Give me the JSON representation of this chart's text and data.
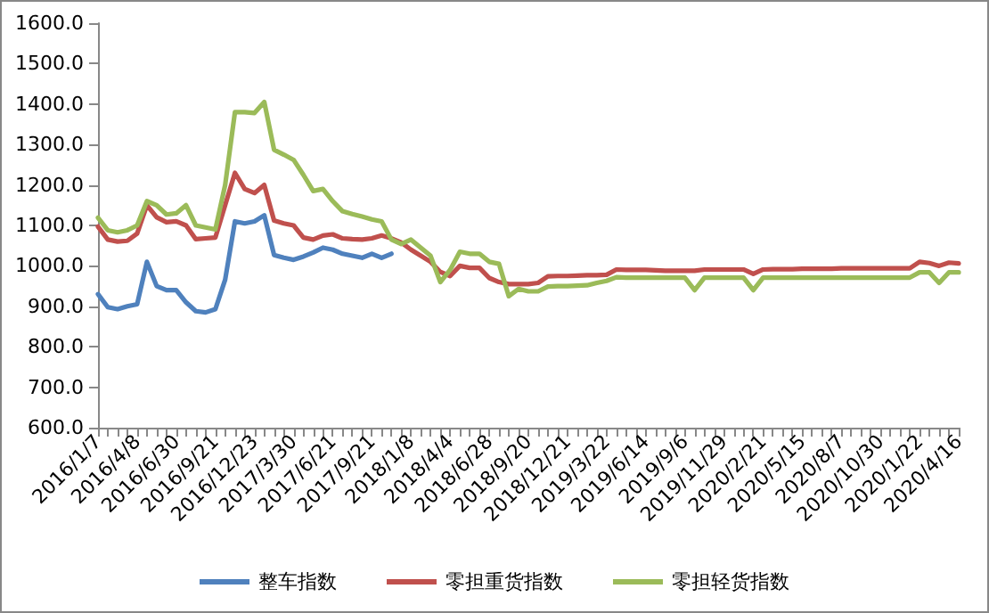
{
  "chart_data": {
    "type": "line",
    "categories": [
      "2016/1/7",
      null,
      null,
      null,
      "2016/4/8",
      null,
      null,
      null,
      "2016/6/30",
      null,
      null,
      null,
      "2016/9/21",
      null,
      null,
      null,
      "2016/12/23",
      null,
      null,
      null,
      "2017/3/30",
      null,
      null,
      null,
      "2017/6/21",
      null,
      null,
      null,
      "2017/9/21",
      null,
      null,
      null,
      "2018/1/8",
      null,
      null,
      null,
      "2018/4/4",
      null,
      null,
      null,
      "2018/6/28",
      null,
      null,
      null,
      "2018/9/20",
      null,
      null,
      null,
      "2018/12/21",
      null,
      null,
      null,
      "2019/3/22",
      null,
      null,
      null,
      "2019/6/14",
      null,
      null,
      null,
      "2019/9/6",
      null,
      null,
      null,
      "2019/11/29",
      null,
      null,
      null,
      "2020/2/21",
      null,
      null,
      null,
      "2020/5/15",
      null,
      null,
      null,
      "2020/8/7",
      null,
      null,
      null,
      "2020/10/30",
      null,
      null,
      null,
      "2020/1/22",
      null,
      null,
      null,
      "2020/4/16"
    ],
    "series": [
      {
        "name": "整车指数",
        "color": "#4f81bd",
        "values": [
          930,
          898,
          893,
          900,
          905,
          1010,
          950,
          940,
          940,
          910,
          888,
          885,
          893,
          966,
          1110,
          1105,
          1110,
          1125,
          1027,
          1020,
          1015,
          1023,
          1033,
          1045,
          1040,
          1030,
          1025,
          1020,
          1030,
          1020,
          1030,
          null,
          null,
          null,
          null,
          null,
          null,
          null,
          null,
          null,
          null,
          null,
          null,
          null,
          null,
          null,
          null,
          null,
          null,
          null,
          null,
          null,
          null,
          null,
          null,
          null,
          null,
          null,
          null,
          null,
          null,
          null,
          null,
          null,
          null,
          null,
          null,
          null,
          null,
          null,
          null,
          null,
          null,
          null,
          null,
          null,
          null,
          null,
          null,
          null,
          null,
          null,
          null,
          null,
          null,
          null,
          null,
          null,
          null
        ]
      },
      {
        "name": "零担重货指数",
        "color": "#c0504d",
        "values": [
          1097,
          1065,
          1060,
          1062,
          1080,
          1150,
          1120,
          1108,
          1110,
          1100,
          1066,
          1068,
          1070,
          1150,
          1230,
          1190,
          1180,
          1200,
          1112,
          1105,
          1100,
          1070,
          1065,
          1075,
          1078,
          1068,
          1066,
          1065,
          1068,
          1075,
          1068,
          1058,
          1040,
          1025,
          1010,
          985,
          975,
          1000,
          995,
          995,
          970,
          960,
          955,
          955,
          955,
          958,
          974,
          975,
          975,
          976,
          977,
          977,
          978,
          991,
          990,
          990,
          990,
          989,
          988,
          988,
          988,
          988,
          991,
          991,
          991,
          991,
          991,
          980,
          991,
          992,
          992,
          992,
          993,
          993,
          993,
          993,
          994,
          994,
          994,
          994,
          994,
          994,
          994,
          994,
          1010,
          1007,
          1000,
          1008,
          1006
        ]
      },
      {
        "name": "零担轻货指数",
        "color": "#9bbb59",
        "values": [
          1119,
          1088,
          1083,
          1088,
          1100,
          1160,
          1150,
          1127,
          1130,
          1150,
          1100,
          1095,
          1090,
          1200,
          1380,
          1380,
          1378,
          1405,
          1287,
          1275,
          1262,
          1225,
          1185,
          1190,
          1160,
          1135,
          1128,
          1122,
          1115,
          1110,
          1065,
          1054,
          1065,
          1045,
          1025,
          960,
          990,
          1035,
          1030,
          1030,
          1010,
          1005,
          925,
          943,
          937,
          937,
          949,
          950,
          950,
          951,
          952,
          958,
          963,
          972,
          971,
          971,
          971,
          971,
          971,
          971,
          971,
          940,
          971,
          971,
          971,
          971,
          971,
          940,
          971,
          971,
          971,
          971,
          971,
          971,
          971,
          971,
          971,
          971,
          971,
          971,
          971,
          971,
          971,
          971,
          984,
          984,
          958,
          984,
          984
        ]
      }
    ],
    "ylim": [
      600,
      1600
    ],
    "yticks": [
      {
        "value": 600,
        "label": "600.0"
      },
      {
        "value": 700,
        "label": "700.0"
      },
      {
        "value": 800,
        "label": "800.0"
      },
      {
        "value": 900,
        "label": "900.0"
      },
      {
        "value": 1000,
        "label": "1000.0"
      },
      {
        "value": 1100,
        "label": "1100.0"
      },
      {
        "value": 1200,
        "label": "1200.0"
      },
      {
        "value": 1300,
        "label": "1300.0"
      },
      {
        "value": 1400,
        "label": "1400.0"
      },
      {
        "value": 1500,
        "label": "1500.0"
      },
      {
        "value": 1600,
        "label": "1600.0"
      }
    ],
    "grid": false,
    "legend": "bottom",
    "marker": "none",
    "line_style": "solid"
  }
}
